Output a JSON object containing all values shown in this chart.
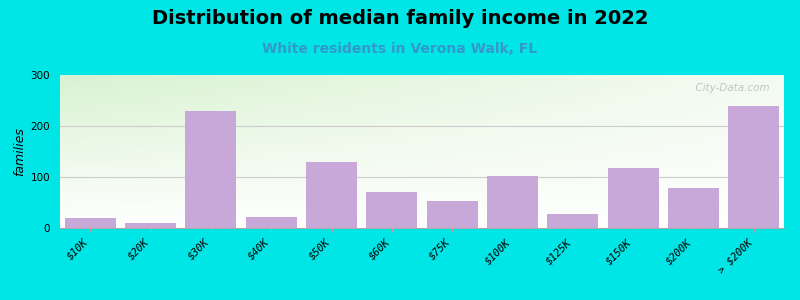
{
  "title": "Distribution of median family income in 2022",
  "subtitle": "White residents in Verona Walk, FL",
  "ylabel": "families",
  "categories": [
    "$10K",
    "$20K",
    "$30K",
    "$40K",
    "$50K",
    "$60K",
    "$75K",
    "$100K",
    "$125K",
    "$150K",
    "$200K",
    "> $200K"
  ],
  "values": [
    20,
    10,
    230,
    22,
    130,
    70,
    52,
    102,
    28,
    118,
    78,
    240
  ],
  "bar_color": "#c8a8d8",
  "bg_color": "#00e5e5",
  "plot_bg_top_left": "#d8ecd0",
  "plot_bg_right": "#f8f8f8",
  "plot_bg_bottom": "#ffffff",
  "title_fontsize": 14,
  "subtitle_fontsize": 10,
  "subtitle_color": "#3399cc",
  "ylabel_fontsize": 9,
  "tick_fontsize": 7.5,
  "ylim": [
    0,
    300
  ],
  "yticks": [
    0,
    100,
    200,
    300
  ],
  "watermark": "  City-Data.com"
}
